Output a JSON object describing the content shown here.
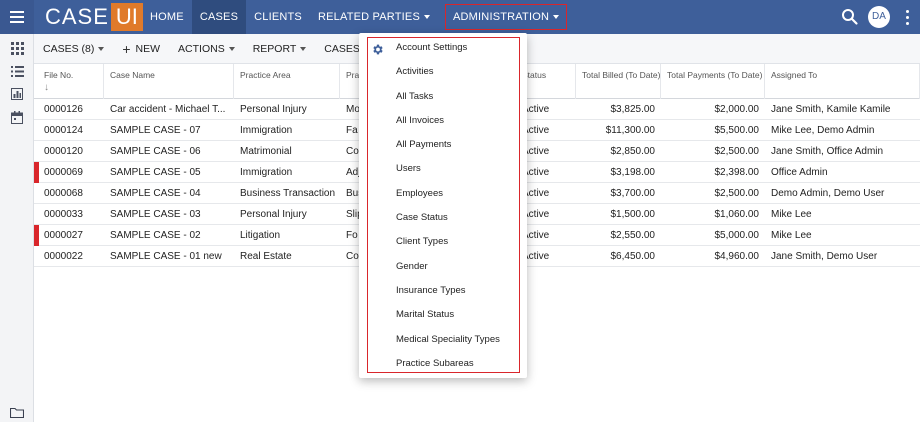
{
  "topbar": {
    "logo_case": "CASE",
    "logo_ui": "UI",
    "nav": [
      {
        "label": "HOME",
        "active": false,
        "caret": false
      },
      {
        "label": "CASES",
        "active": true,
        "caret": false
      },
      {
        "label": "CLIENTS",
        "active": false,
        "caret": false
      },
      {
        "label": "RELATED PARTIES",
        "active": false,
        "caret": true
      },
      {
        "label": "ADMINISTRATION",
        "active": false,
        "caret": true
      }
    ],
    "avatar_initials": "DA",
    "icons": {
      "menu": "hamburger-menu-icon",
      "search": "search-icon",
      "more": "more-vertical-icon"
    }
  },
  "rail": {
    "icons": [
      "grid-view-icon",
      "list-view-icon",
      "bar-chart-icon",
      "calendar-icon",
      "folder-icon"
    ]
  },
  "toolbar": {
    "cases_label": "CASES (8)",
    "new_label": "NEW",
    "actions_label": "ACTIONS",
    "report_label": "REPORT",
    "assign_label": "CASES ASSIG"
  },
  "table": {
    "columns": [
      "File No.",
      "Case Name",
      "Practice Area",
      "Pra",
      "Status",
      "Total Billed (To Date)",
      "Total Payments (To Date)",
      "Assigned To"
    ],
    "sort_indicator": "↓",
    "rows": [
      {
        "file_no": "0000126",
        "case_name": "Car accident - Michael T...",
        "practice_area": "Personal Injury",
        "practice_sub": "Mo",
        "status": "Active",
        "billed": "$3,825.00",
        "payments": "$2,000.00",
        "assigned": "Jane Smith, Kamile Kamile",
        "flagged": false
      },
      {
        "file_no": "0000124",
        "case_name": "SAMPLE CASE - 07",
        "practice_area": "Immigration",
        "practice_sub": "Fa",
        "status": "Active",
        "billed": "$11,300.00",
        "payments": "$5,500.00",
        "assigned": "Mike Lee, Demo Admin",
        "flagged": false
      },
      {
        "file_no": "0000120",
        "case_name": "SAMPLE CASE - 06",
        "practice_area": "Matrimonial",
        "practice_sub": "Co",
        "status": "Active",
        "billed": "$2,850.00",
        "payments": "$2,500.00",
        "assigned": "Jane Smith, Office Admin",
        "flagged": false
      },
      {
        "file_no": "0000069",
        "case_name": "SAMPLE CASE - 05",
        "practice_area": "Immigration",
        "practice_sub": "Adj",
        "status": "Active",
        "billed": "$3,198.00",
        "payments": "$2,398.00",
        "assigned": "Office Admin",
        "flagged": true
      },
      {
        "file_no": "0000068",
        "case_name": "SAMPLE CASE - 04",
        "practice_area": "Business Transaction",
        "practice_sub": "Bus",
        "status": "Active",
        "billed": "$3,700.00",
        "payments": "$2,500.00",
        "assigned": "Demo Admin, Demo User",
        "flagged": false
      },
      {
        "file_no": "0000033",
        "case_name": "SAMPLE CASE - 03",
        "practice_area": "Personal Injury",
        "practice_sub": "Slip",
        "status": "Active",
        "billed": "$1,500.00",
        "payments": "$1,060.00",
        "assigned": "Mike Lee",
        "flagged": false
      },
      {
        "file_no": "0000027",
        "case_name": "SAMPLE CASE - 02",
        "practice_area": "Litigation",
        "practice_sub": "Fo",
        "status": "Active",
        "billed": "$2,550.00",
        "payments": "$5,000.00",
        "assigned": "Mike Lee",
        "flagged": true
      },
      {
        "file_no": "0000022",
        "case_name": "SAMPLE CASE - 01 new",
        "practice_area": "Real Estate",
        "practice_sub": "Co",
        "status": "Active",
        "billed": "$6,450.00",
        "payments": "$4,960.00",
        "assigned": "Jane Smith, Demo User",
        "flagged": false
      }
    ]
  },
  "admin_menu": {
    "settings_icon": "gear-icon",
    "items": [
      "Account Settings",
      "Activities",
      "All Tasks",
      "All Invoices",
      "All Payments",
      "Users",
      "Employees",
      "Case Status",
      "Client Types",
      "Gender",
      "Insurance Types",
      "Marital Status",
      "Medical Speciality Types",
      "Practice Subareas"
    ]
  },
  "colors": {
    "topbar": "#3e5f9a",
    "nav_active": "#2f4c7e",
    "logo_accent": "#e07a2a",
    "highlight_red": "#d9262b"
  }
}
